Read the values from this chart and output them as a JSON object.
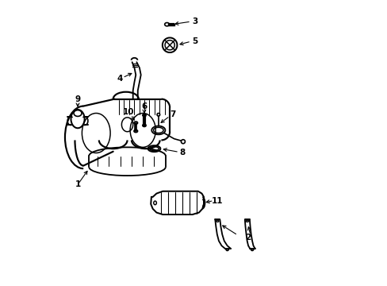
{
  "background_color": "#ffffff",
  "line_color": "#000000",
  "line_width": 1.2,
  "fig_width": 4.89,
  "fig_height": 3.6,
  "dpi": 100
}
